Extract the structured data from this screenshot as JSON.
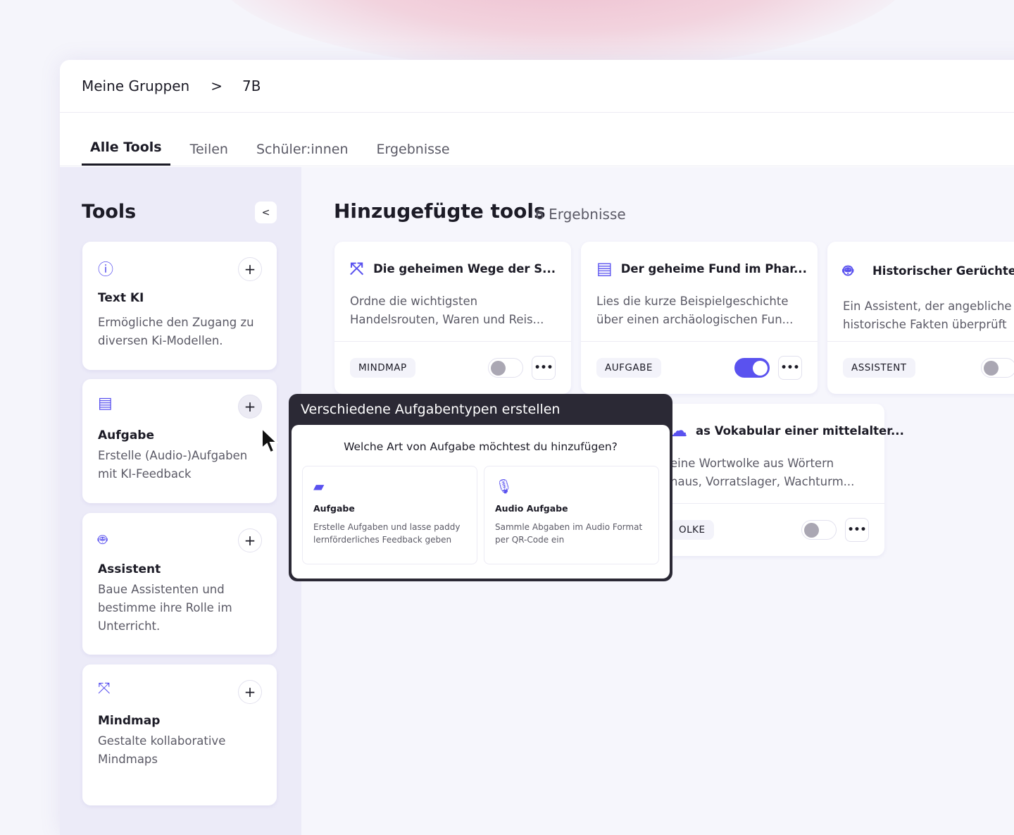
{
  "breadcrumb": {
    "root": "Meine Gruppen",
    "separator": ">",
    "current": "7B"
  },
  "tabs": [
    "Alle Tools",
    "Teilen",
    "Schüler:innen",
    "Ergebnisse"
  ],
  "sidebar": {
    "title": "Tools",
    "collapse": "<",
    "items": [
      {
        "icon": "info-icon",
        "glyph": "ⓘ",
        "title": "Text KI",
        "desc": "Ermögliche den Zugang zu diversen Ki-Modellen."
      },
      {
        "icon": "document-icon",
        "glyph": "▤",
        "title": "Aufgabe",
        "desc": "Erstelle (Audio-)Aufgaben mit KI-Feedback"
      },
      {
        "icon": "robot-icon",
        "glyph": "🤖︎",
        "title": "Assistent",
        "desc": "Baue Assistenten und bestimme ihre Rolle im Unterricht."
      },
      {
        "icon": "expand-icon",
        "glyph": "⤧",
        "title": "Mindmap",
        "desc": "Gestalte kollaborative Mindmaps"
      }
    ]
  },
  "main": {
    "title": "Hinzugefügte tools",
    "count": "6 Ergebnisse",
    "cards": [
      {
        "icon": "expand-icon",
        "glyph": "⤧",
        "title": "Die geheimen Wege der S...",
        "desc1": "Ordne die wichtigsten",
        "desc2": "Handelsrouten, Waren und Reis...",
        "badge": "MINDMAP",
        "enabled": false
      },
      {
        "icon": "document-icon",
        "glyph": "▤",
        "title": "Der geheime Fund im Phar...",
        "desc1": "Lies die kurze Beispielgeschichte",
        "desc2": "über einen archäologischen Fun...",
        "badge": "AUFGABE",
        "enabled": true
      },
      {
        "icon": "robot-icon",
        "glyph": "🤖︎",
        "title": "Historischer Gerüchte-",
        "desc1": "Ein Assistent, der angebliche",
        "desc2": "historische Fakten überprüft",
        "badge": "ASSISTENT",
        "enabled": false
      },
      {
        "icon": "cloud-icon",
        "glyph": "☁",
        "title": "as Vokabular einer mittelalter...",
        "desc1": "eine Wortwolke aus Wörtern",
        "desc2": "haus, Vorratslager, Wachturm...",
        "badge": "OLKE",
        "enabled": false
      }
    ]
  },
  "popover": {
    "title": "Verschiedene Aufgabentypen erstellen",
    "question": "Welche Art von Aufgabe möchtest du hinzufügen?",
    "options": [
      {
        "icon": "chat-icon",
        "glyph": "▰",
        "title": "Aufgabe",
        "desc": "Erstelle Aufgaben und lasse paddy lernförderliches Feedback geben"
      },
      {
        "icon": "microphone-icon",
        "glyph": "🎙︎",
        "title": "Audio Aufgabe",
        "desc": "Sammle Abgaben im Audio Format per QR-Code ein"
      }
    ]
  },
  "more_glyph": "•••",
  "plus_glyph": "+",
  "colors": {
    "accent": "#5a52ef",
    "popover_header": "#2b2935"
  }
}
